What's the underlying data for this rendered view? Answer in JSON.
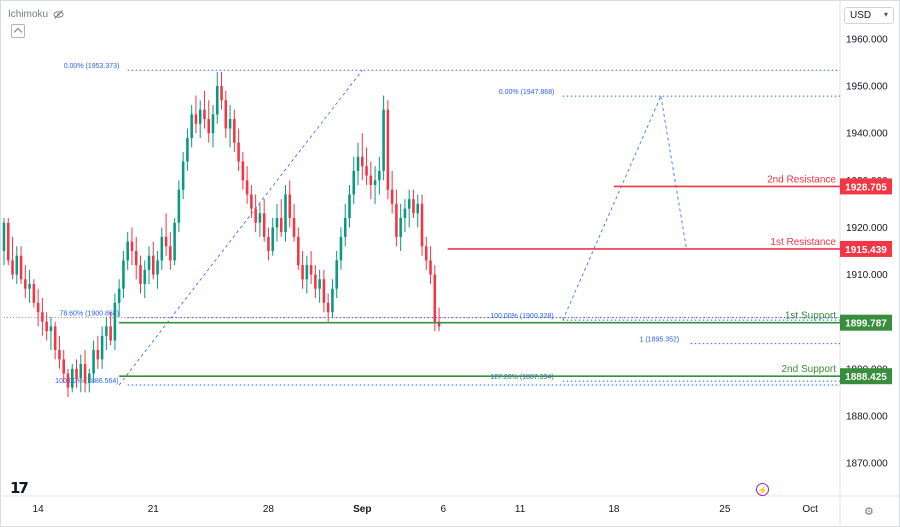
{
  "indicator_label": "Ichimoku",
  "currency": {
    "selected": "USD"
  },
  "colors": {
    "up": "#089981",
    "down": "#f23645",
    "resistance": "#f23645",
    "support": "#388e3c",
    "fib": "#2962ff"
  },
  "chart_data": {
    "type": "candlestick",
    "y_axis": {
      "ticks": [
        1870,
        1880,
        1890,
        1900,
        1910,
        1920,
        1930,
        1940,
        1950,
        1960
      ],
      "tick_labels": [
        "1870.000",
        "1880.000",
        "1890.000",
        "1900.000",
        "1910.000",
        "1920.000",
        "1930.000",
        "1940.000",
        "1950.000",
        "1960.000"
      ],
      "range": [
        1863,
        1967
      ]
    },
    "x_axis": {
      "tick_labels": [
        "14",
        "21",
        "28",
        "Sep",
        "6",
        "11",
        "18",
        "25",
        "Oct"
      ],
      "tick_index": [
        8,
        35,
        62,
        84,
        103,
        121,
        143,
        169,
        189
      ],
      "range": [
        0,
        196
      ]
    },
    "levels": [
      {
        "label": "2nd Resistance",
        "value": 1928.705,
        "price_label": "1928.705",
        "kind": "resistance",
        "start": 143
      },
      {
        "label": "1st Resistance",
        "value": 1915.439,
        "price_label": "1915.439",
        "kind": "resistance",
        "start": 104
      },
      {
        "label": "1st Support",
        "value": 1899.787,
        "price_label": "1899.787",
        "kind": "support",
        "start": 27
      },
      {
        "label": "2nd Support",
        "value": 1888.425,
        "price_label": "1888.425",
        "kind": "support",
        "start": 27
      }
    ],
    "fib_labels": [
      {
        "text": "0.00% (1953.373)",
        "value": 1953.373,
        "label_index": 14,
        "line_from": 29,
        "line_to": 196
      },
      {
        "text": "78.60% (1900.868)",
        "value": 1900.868,
        "label_index": 13,
        "line_from": 29,
        "line_to": 196
      },
      {
        "text": "100.00% (1886.564)",
        "value": 1886.564,
        "label_index": 12,
        "line_from": 29,
        "line_to": 196
      },
      {
        "text": "0.00% (1947.868)",
        "value": 1947.868,
        "label_index": 116,
        "line_from": 131,
        "line_to": 196
      },
      {
        "text": "100.00% (1900.328)",
        "value": 1900.328,
        "label_index": 114,
        "line_from": 131,
        "line_to": 196
      },
      {
        "text": "127.20% (1887.394)",
        "value": 1887.394,
        "label_index": 114,
        "line_from": 131,
        "line_to": 196
      },
      {
        "text": "1 (1895.352)",
        "value": 1895.352,
        "label_index": 149,
        "line_from": 161,
        "line_to": 196
      }
    ],
    "fib_diagonals": [
      {
        "from": [
          27,
          1886.564
        ],
        "to": [
          84,
          1953.373
        ]
      },
      {
        "from": [
          131,
          1900.328
        ],
        "to": [
          154,
          1947.868
        ]
      },
      {
        "from": [
          154,
          1947.868
        ],
        "to": [
          160,
          1915.5
        ]
      }
    ],
    "current_price": 1900.868,
    "candles": [
      [
        1915,
        1922,
        1912,
        1921
      ],
      [
        1921,
        1922,
        1912,
        1913
      ],
      [
        1913,
        1918,
        1909,
        1910
      ],
      [
        1910,
        1916,
        1908,
        1914
      ],
      [
        1914,
        1916,
        1908,
        1909
      ],
      [
        1909,
        1912,
        1905,
        1907
      ],
      [
        1907,
        1911,
        1904,
        1908
      ],
      [
        1908,
        1909,
        1903,
        1904
      ],
      [
        1904,
        1907,
        1899,
        1902
      ],
      [
        1902,
        1905,
        1897,
        1900
      ],
      [
        1900,
        1902,
        1896,
        1898
      ],
      [
        1898,
        1901,
        1894,
        1899
      ],
      [
        1899,
        1900,
        1892,
        1894
      ],
      [
        1894,
        1897,
        1890,
        1892
      ],
      [
        1892,
        1894,
        1887,
        1889
      ],
      [
        1889,
        1890,
        1884,
        1886
      ],
      [
        1886,
        1891,
        1885,
        1890
      ],
      [
        1890,
        1892,
        1886,
        1888
      ],
      [
        1888,
        1893,
        1885,
        1891
      ],
      [
        1891,
        1894,
        1885,
        1887
      ],
      [
        1887,
        1890,
        1885,
        1889
      ],
      [
        1889,
        1896,
        1887,
        1894
      ],
      [
        1894,
        1897,
        1890,
        1892
      ],
      [
        1892,
        1899,
        1890,
        1897
      ],
      [
        1897,
        1901,
        1894,
        1899
      ],
      [
        1899,
        1902,
        1895,
        1896
      ],
      [
        1896,
        1906,
        1894,
        1904
      ],
      [
        1904,
        1909,
        1901,
        1907
      ],
      [
        1907,
        1915,
        1905,
        1913
      ],
      [
        1913,
        1919,
        1911,
        1917
      ],
      [
        1917,
        1920,
        1912,
        1915
      ],
      [
        1915,
        1918,
        1909,
        1912
      ],
      [
        1912,
        1914,
        1906,
        1908
      ],
      [
        1908,
        1913,
        1905,
        1911
      ],
      [
        1911,
        1916,
        1908,
        1914
      ],
      [
        1914,
        1917,
        1909,
        1910
      ],
      [
        1910,
        1915,
        1907,
        1913
      ],
      [
        1913,
        1920,
        1911,
        1918
      ],
      [
        1918,
        1923,
        1914,
        1916
      ],
      [
        1916,
        1919,
        1911,
        1913
      ],
      [
        1913,
        1922,
        1912,
        1921
      ],
      [
        1921,
        1930,
        1919,
        1928
      ],
      [
        1928,
        1936,
        1926,
        1934
      ],
      [
        1934,
        1941,
        1932,
        1939
      ],
      [
        1939,
        1946,
        1937,
        1944
      ],
      [
        1944,
        1948,
        1940,
        1942
      ],
      [
        1942,
        1947,
        1939,
        1945
      ],
      [
        1945,
        1949,
        1941,
        1943
      ],
      [
        1943,
        1947,
        1938,
        1940
      ],
      [
        1940,
        1946,
        1937,
        1944
      ],
      [
        1944,
        1953,
        1942,
        1950
      ],
      [
        1950,
        1953,
        1945,
        1947
      ],
      [
        1947,
        1949,
        1939,
        1941
      ],
      [
        1941,
        1946,
        1937,
        1943
      ],
      [
        1943,
        1945,
        1936,
        1938
      ],
      [
        1938,
        1941,
        1932,
        1934
      ],
      [
        1934,
        1936,
        1928,
        1930
      ],
      [
        1930,
        1933,
        1925,
        1927
      ],
      [
        1927,
        1929,
        1922,
        1924
      ],
      [
        1924,
        1927,
        1919,
        1921
      ],
      [
        1921,
        1925,
        1918,
        1923
      ],
      [
        1923,
        1926,
        1917,
        1918
      ],
      [
        1918,
        1920,
        1913,
        1915
      ],
      [
        1915,
        1922,
        1914,
        1920
      ],
      [
        1920,
        1925,
        1917,
        1922
      ],
      [
        1922,
        1926,
        1918,
        1919
      ],
      [
        1919,
        1929,
        1917,
        1927
      ],
      [
        1927,
        1930,
        1920,
        1922
      ],
      [
        1922,
        1925,
        1917,
        1918
      ],
      [
        1918,
        1920,
        1911,
        1912
      ],
      [
        1912,
        1915,
        1907,
        1909
      ],
      [
        1909,
        1914,
        1906,
        1912
      ],
      [
        1912,
        1915,
        1908,
        1910
      ],
      [
        1910,
        1912,
        1905,
        1907
      ],
      [
        1907,
        1911,
        1904,
        1909
      ],
      [
        1909,
        1911,
        1902,
        1904
      ],
      [
        1904,
        1906,
        1900,
        1902
      ],
      [
        1902,
        1909,
        1901,
        1907
      ],
      [
        1907,
        1915,
        1905,
        1913
      ],
      [
        1913,
        1920,
        1911,
        1918
      ],
      [
        1918,
        1925,
        1916,
        1922
      ],
      [
        1922,
        1929,
        1920,
        1927
      ],
      [
        1927,
        1935,
        1925,
        1932
      ],
      [
        1932,
        1938,
        1929,
        1935
      ],
      [
        1935,
        1940,
        1930,
        1933
      ],
      [
        1933,
        1937,
        1929,
        1931
      ],
      [
        1931,
        1934,
        1926,
        1929
      ],
      [
        1929,
        1933,
        1925,
        1930
      ],
      [
        1930,
        1935,
        1927,
        1932
      ],
      [
        1932,
        1948,
        1930,
        1945
      ],
      [
        1945,
        1947,
        1926,
        1928
      ],
      [
        1928,
        1932,
        1923,
        1925
      ],
      [
        1925,
        1928,
        1916,
        1918
      ],
      [
        1918,
        1925,
        1915,
        1922
      ],
      [
        1922,
        1926,
        1919,
        1924
      ],
      [
        1924,
        1928,
        1920,
        1926
      ],
      [
        1926,
        1928,
        1922,
        1923
      ],
      [
        1923,
        1927,
        1920,
        1925
      ],
      [
        1925,
        1927,
        1914,
        1916
      ],
      [
        1916,
        1918,
        1911,
        1913
      ],
      [
        1913,
        1916,
        1908,
        1910
      ],
      [
        1910,
        1912,
        1898,
        1900
      ],
      [
        1900,
        1903,
        1898,
        1899
      ]
    ]
  }
}
